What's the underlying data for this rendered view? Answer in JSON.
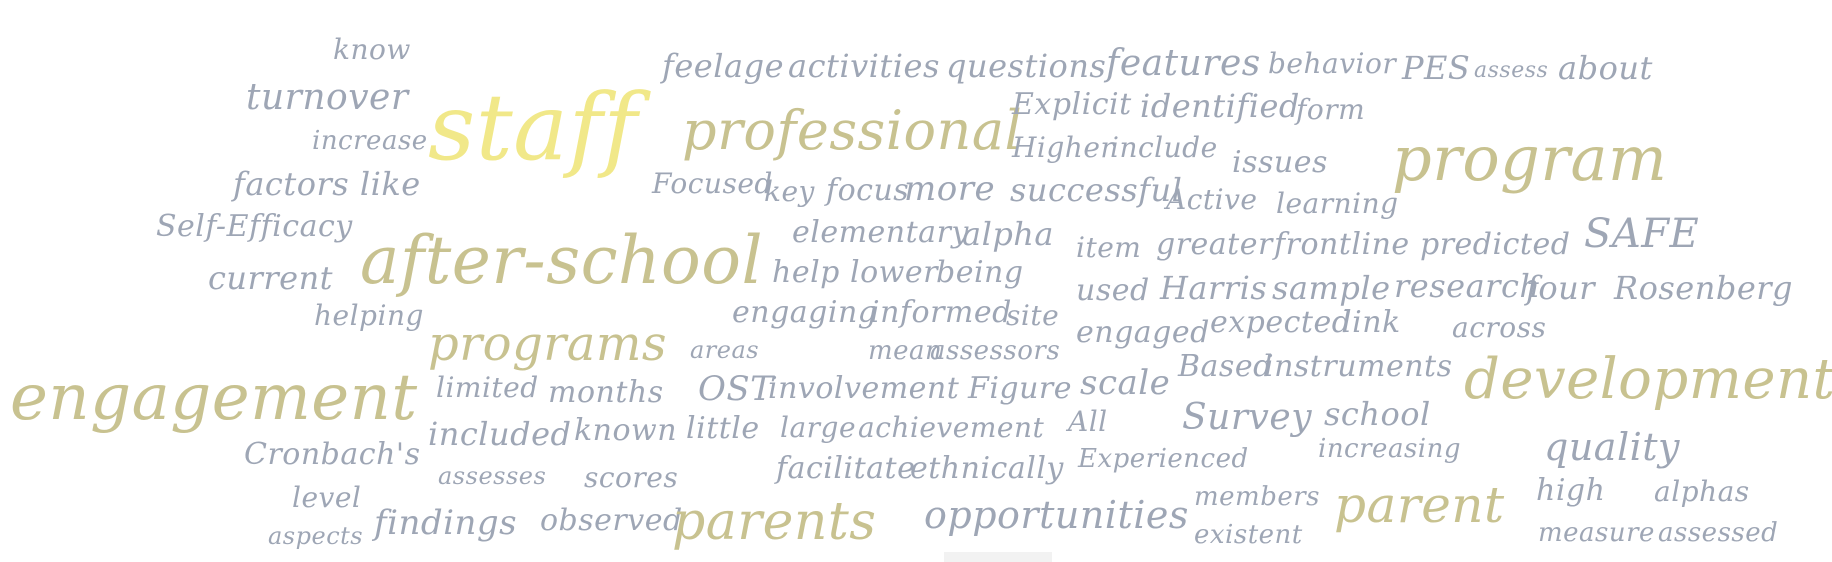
{
  "words": [
    "know",
    "turnover",
    "increase",
    "factors like",
    "Self-Efficacy",
    "current",
    "helping",
    "staff",
    "after-school",
    "programs",
    "engagement",
    "limited",
    "months",
    "included",
    "known",
    "Cronbach's",
    "assesses",
    "scores",
    "level",
    "aspects",
    "findings",
    "observed",
    "parents",
    "feel",
    "age",
    "activities",
    "questions",
    "features",
    "behavior",
    "PES",
    "assess",
    "about",
    "professional",
    "Explicit",
    "identified",
    "form",
    "Higher",
    "include",
    "issues",
    "program",
    "Focused",
    "key",
    "focus",
    "more",
    "successful",
    "Active",
    "learning",
    "elementary",
    "alpha",
    "item",
    "greater",
    "frontline",
    "predicted",
    "SAFE",
    "help",
    "lower",
    "being",
    "used",
    "Harris",
    "sample",
    "research",
    "four",
    "Rosenberg",
    "engaging",
    "informed",
    "site",
    "engaged",
    "expected",
    "link",
    "across",
    "areas",
    "mean",
    "assessors",
    "Based",
    "instruments",
    "OST",
    "involvement",
    "Figure",
    "scale",
    "development",
    "little",
    "large",
    "achievement",
    "All",
    "Survey",
    "school",
    "increasing",
    "quality",
    "facilitate",
    "ethnically",
    "Experienced",
    "high",
    "alphas",
    "opportunities",
    "members",
    "existent",
    "parent",
    "measure",
    "assessed"
  ],
  "colors": {
    "small": "#9ea6b5",
    "large": "#c8c290",
    "largest": "#f1e889"
  }
}
